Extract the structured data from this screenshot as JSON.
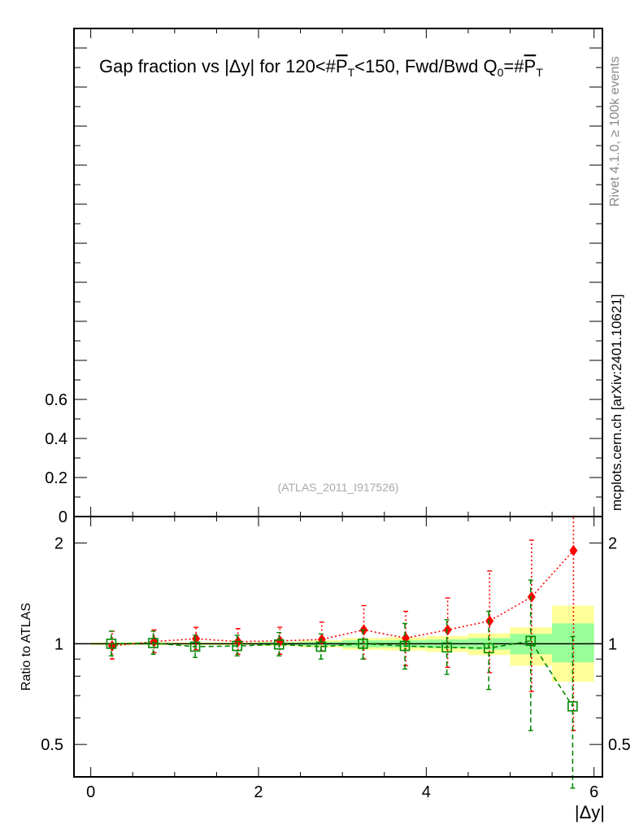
{
  "side_labels": {
    "rivet": "Rivet 4.1.0, ≥ 100k events",
    "mcplots": "mcplots.cern.ch [arXiv:2401.10621]"
  },
  "chart_data": {
    "type": "line",
    "title_parts": {
      "pre": "Gap fraction vs |",
      "delta": "Δ",
      "mid": "y| for 120<#",
      "pt1": "P",
      "sub1": "T",
      "mid2": "<150, Fwd/Bwd Q",
      "sub0": "0",
      "eq": "=#",
      "pt2": "P",
      "sub2": "T"
    },
    "watermark": "(ATLAS_2011_I917526)",
    "xlabel": "|Δy|",
    "ratio_ylabel": "Ratio to ATLAS",
    "xlim": [
      -0.2,
      6.1
    ],
    "main_ylim": [
      0,
      2.5
    ],
    "ratio_ylim": [
      0.4,
      2.4
    ],
    "x_ticks": [
      "0",
      "2",
      "4",
      "6"
    ],
    "x_tick_values": [
      0,
      2,
      4,
      6
    ],
    "main_y_ticks": [
      "0",
      "0.2",
      "0.4",
      "0.6"
    ],
    "main_y_tick_values": [
      0,
      0.2,
      0.4,
      0.6
    ],
    "ratio_y_ticks": [
      "0.5",
      "1",
      "2"
    ],
    "ratio_y_tick_values": [
      0.5,
      1,
      2
    ],
    "bins": [
      {
        "lo": 0.0,
        "hi": 0.5
      },
      {
        "lo": 0.5,
        "hi": 1.0
      },
      {
        "lo": 1.0,
        "hi": 1.5
      },
      {
        "lo": 1.5,
        "hi": 2.0
      },
      {
        "lo": 2.0,
        "hi": 2.5
      },
      {
        "lo": 2.5,
        "hi": 3.0
      },
      {
        "lo": 3.0,
        "hi": 3.5
      },
      {
        "lo": 3.5,
        "hi": 4.0
      },
      {
        "lo": 4.0,
        "hi": 4.5
      },
      {
        "lo": 4.5,
        "hi": 5.0
      },
      {
        "lo": 5.0,
        "hi": 5.5
      },
      {
        "lo": 5.5,
        "hi": 6.0
      }
    ],
    "data_band_yellow": [
      [
        0.99,
        1.01
      ],
      [
        0.99,
        1.01
      ],
      [
        0.99,
        1.01
      ],
      [
        0.99,
        1.01
      ],
      [
        0.985,
        1.015
      ],
      [
        0.975,
        1.025
      ],
      [
        0.96,
        1.04
      ],
      [
        0.955,
        1.045
      ],
      [
        0.945,
        1.055
      ],
      [
        0.925,
        1.075
      ],
      [
        0.86,
        1.12
      ],
      [
        0.77,
        1.3
      ]
    ],
    "data_band_green": [
      [
        0.995,
        1.005
      ],
      [
        0.995,
        1.005
      ],
      [
        0.995,
        1.005
      ],
      [
        0.995,
        1.005
      ],
      [
        0.99,
        1.01
      ],
      [
        0.985,
        1.015
      ],
      [
        0.975,
        1.025
      ],
      [
        0.975,
        1.025
      ],
      [
        0.97,
        1.03
      ],
      [
        0.96,
        1.04
      ],
      [
        0.93,
        1.07
      ],
      [
        0.88,
        1.15
      ]
    ],
    "series": [
      {
        "name": "red",
        "color": "#ff0000",
        "marker": "diamond",
        "x": [
          0.25,
          0.75,
          1.25,
          1.75,
          2.25,
          2.75,
          3.25,
          3.75,
          4.25,
          4.75,
          5.25,
          5.75
        ],
        "values": [
          0.985,
          1.015,
          1.035,
          1.015,
          1.02,
          1.03,
          1.1,
          1.04,
          1.1,
          1.17,
          1.38,
          1.9
        ],
        "err_lo": [
          0.9,
          0.94,
          0.96,
          0.93,
          0.93,
          0.95,
          0.9,
          0.86,
          0.85,
          0.82,
          0.72,
          0.55
        ],
        "err_hi": [
          1.09,
          1.1,
          1.12,
          1.11,
          1.12,
          1.16,
          1.3,
          1.25,
          1.37,
          1.65,
          2.04,
          2.4
        ]
      },
      {
        "name": "green",
        "color": "#008800",
        "marker": "open-square",
        "x": [
          0.25,
          0.75,
          1.25,
          1.75,
          2.25,
          2.75,
          3.25,
          3.75,
          4.25,
          4.75,
          5.25,
          5.75
        ],
        "values": [
          1.0,
          1.005,
          0.98,
          0.985,
          0.995,
          0.98,
          1.0,
          0.985,
          0.975,
          0.97,
          1.02,
          0.65
        ],
        "err_lo": [
          0.92,
          0.93,
          0.91,
          0.92,
          0.92,
          0.9,
          0.9,
          0.84,
          0.81,
          0.73,
          0.55,
          0.37
        ],
        "err_hi": [
          1.09,
          1.09,
          1.06,
          1.06,
          1.08,
          1.07,
          1.1,
          1.15,
          1.18,
          1.25,
          1.55,
          1.05
        ]
      }
    ]
  }
}
